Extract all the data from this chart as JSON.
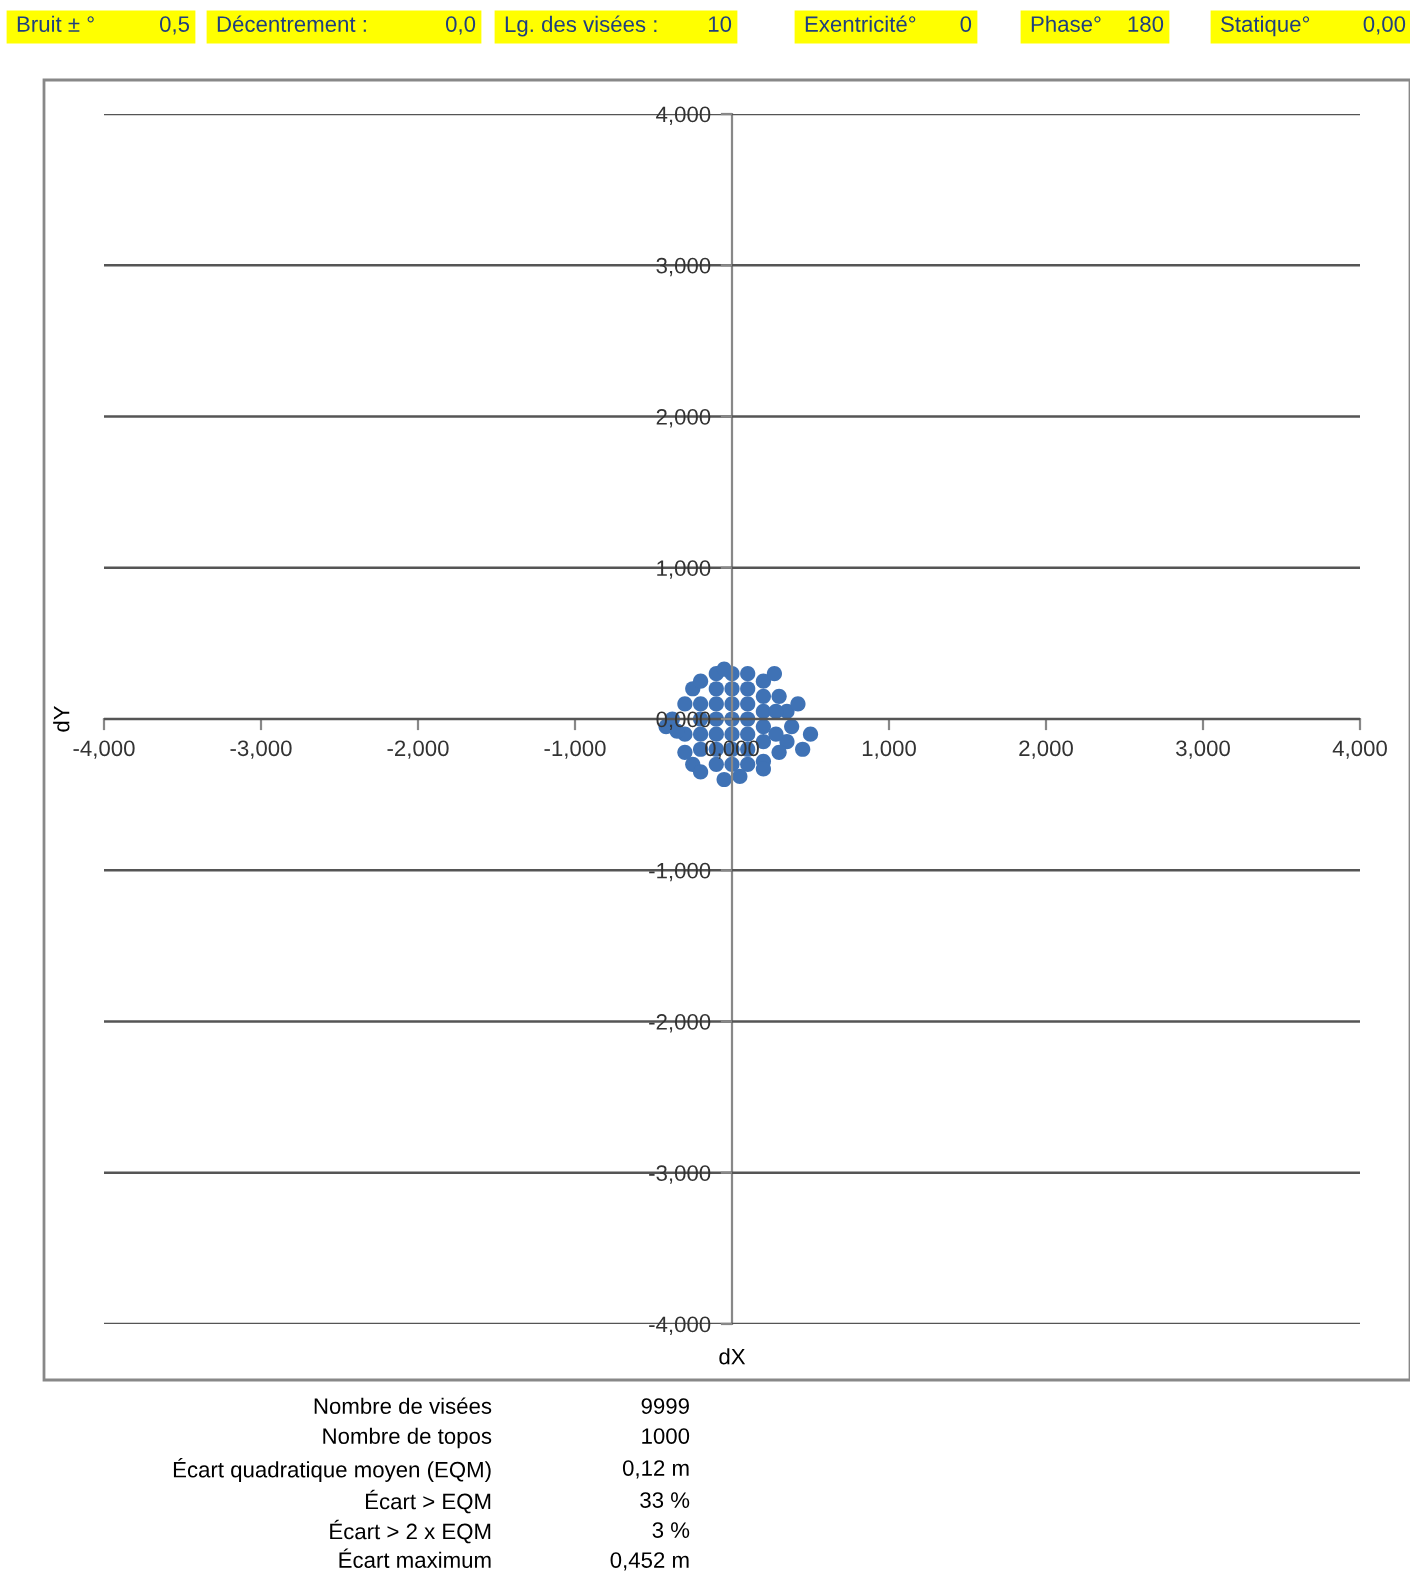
{
  "chart_data": {
    "type": "scatter",
    "xlabel": "dX",
    "ylabel": "dY",
    "x": [
      -0.3,
      -0.3,
      -0.25,
      -0.2,
      -0.1,
      0,
      0.1,
      0.2,
      0.27,
      0.3,
      0.35,
      0.38,
      0.35,
      0.3,
      0.2,
      0.1,
      0,
      -0.1,
      -0.2,
      -0.42,
      -0.38,
      -0.35,
      -0.2,
      -0.2,
      -0.2,
      -0.1,
      -0.1,
      -0.1,
      -0.1,
      -0.1,
      0,
      0,
      0,
      0,
      0,
      0.1,
      0.1,
      0.1,
      0.1,
      0.1,
      0.2,
      0.2,
      0.2,
      0.2,
      0.28,
      0.28,
      -0.25,
      -0.2,
      -0.05,
      0.05,
      0.2,
      0.45,
      0.42,
      0.5,
      -0.05,
      -0.3
    ],
    "values": [
      0.1,
      -0.1,
      0.2,
      0.25,
      0.3,
      0.3,
      0.3,
      0.25,
      0.3,
      0.15,
      0.05,
      -0.05,
      -0.15,
      -0.22,
      -0.28,
      -0.3,
      -0.3,
      -0.3,
      -0.2,
      -0.05,
      0,
      -0.08,
      0.1,
      0,
      -0.1,
      0.2,
      0.1,
      0,
      -0.1,
      -0.2,
      0.2,
      0.1,
      0,
      -0.1,
      -0.2,
      0.2,
      0.1,
      0,
      -0.1,
      -0.2,
      0.15,
      0.05,
      -0.05,
      -0.15,
      0.05,
      -0.1,
      -0.3,
      -0.35,
      -0.4,
      -0.38,
      -0.33,
      -0.2,
      0.1,
      -0.1,
      0.33,
      -0.22
    ],
    "color": "#3f72b5",
    "marker": "circle",
    "grid": "y",
    "xlim": [
      -4,
      4
    ],
    "ylim": [
      -4,
      4
    ],
    "xticks": [
      {
        "value": -4,
        "label": "-4,000"
      },
      {
        "value": -3,
        "label": "-3,000"
      },
      {
        "value": -2,
        "label": "-2,000"
      },
      {
        "value": -1,
        "label": "-1,000"
      },
      {
        "value": 0,
        "label": "0,000"
      },
      {
        "value": 1,
        "label": "1,000"
      },
      {
        "value": 2,
        "label": "2,000"
      },
      {
        "value": 3,
        "label": "3,000"
      },
      {
        "value": 4,
        "label": "4,000"
      }
    ],
    "yticks": [
      {
        "value": -4,
        "label": "-4,000"
      },
      {
        "value": -3,
        "label": "-3,000"
      },
      {
        "value": -2,
        "label": "-2,000"
      },
      {
        "value": -1,
        "label": "-1,000"
      },
      {
        "value": 0,
        "label": "0,000"
      },
      {
        "value": 1,
        "label": "1,000"
      },
      {
        "value": 2,
        "label": "2,000"
      },
      {
        "value": 3,
        "label": "3,000"
      },
      {
        "value": 4,
        "label": "4,000"
      }
    ],
    "annotations": [
      "Bruit ± °",
      "0,5",
      "Décentrement :",
      "0,0",
      "Lg. des visées :",
      "10",
      "Exentricité°",
      "0",
      "Phase°",
      "180",
      "Statique°",
      "0,00",
      "Nombre de visées",
      "9999",
      "Nombre de topos",
      "1000",
      "Écart quadratique moyen (EQM)",
      "0,12 m",
      "Écart > EQM",
      "33 %",
      "Écart > 2 x EQM",
      "3 %",
      "Écart maximum",
      "0,452 m"
    ]
  }
}
